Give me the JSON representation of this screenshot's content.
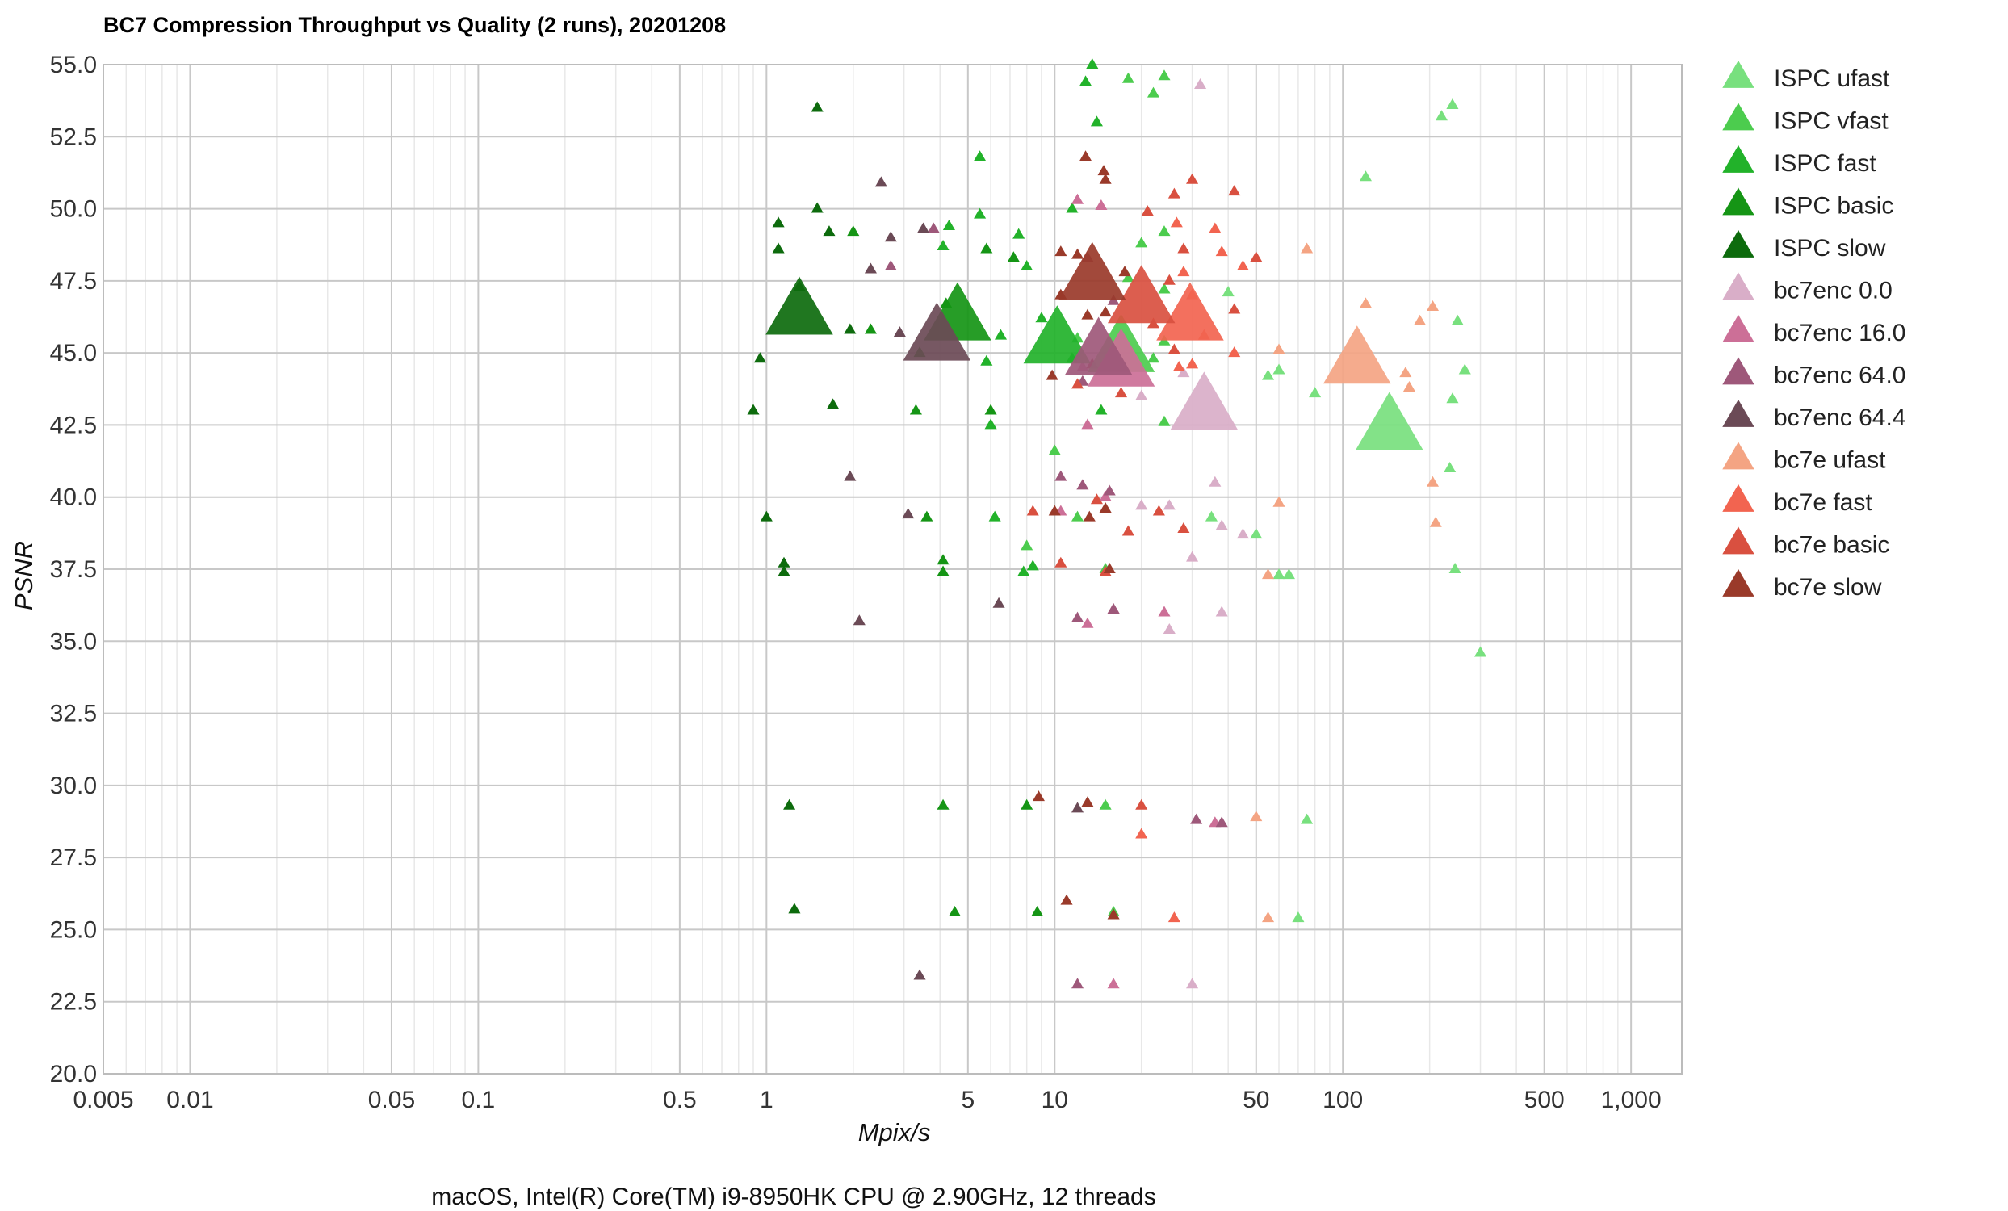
{
  "chart_data": {
    "type": "scatter",
    "title": "BC7 Compression Throughput vs Quality (2 runs), 20201208",
    "xlabel": "Mpix/s",
    "ylabel": "PSNR",
    "footer": "macOS, Intel(R) Core(TM) i9-8950HK CPU @ 2.90GHz, 12 threads",
    "x_scale": "log",
    "xlim": [
      0.005,
      1500
    ],
    "ylim": [
      20,
      55
    ],
    "x_ticks": [
      {
        "value": 0.005,
        "label": "0.005"
      },
      {
        "value": 0.01,
        "label": "0.01"
      },
      {
        "value": 0.05,
        "label": "0.05"
      },
      {
        "value": 0.1,
        "label": "0.1"
      },
      {
        "value": 0.5,
        "label": "0.5"
      },
      {
        "value": 1,
        "label": "1"
      },
      {
        "value": 5,
        "label": "5"
      },
      {
        "value": 10,
        "label": "10"
      },
      {
        "value": 50,
        "label": "50"
      },
      {
        "value": 100,
        "label": "100"
      },
      {
        "value": 500,
        "label": "500"
      },
      {
        "value": 1000,
        "label": "1,000"
      }
    ],
    "y_ticks": [
      {
        "value": 20,
        "label": "20.0"
      },
      {
        "value": 22.5,
        "label": "22.5"
      },
      {
        "value": 25,
        "label": "25.0"
      },
      {
        "value": 27.5,
        "label": "27.5"
      },
      {
        "value": 30,
        "label": "30.0"
      },
      {
        "value": 32.5,
        "label": "32.5"
      },
      {
        "value": 35,
        "label": "35.0"
      },
      {
        "value": 37.5,
        "label": "37.5"
      },
      {
        "value": 40,
        "label": "40.0"
      },
      {
        "value": 42.5,
        "label": "42.5"
      },
      {
        "value": 45,
        "label": "45.0"
      },
      {
        "value": 47.5,
        "label": "47.5"
      },
      {
        "value": 50,
        "label": "50.0"
      },
      {
        "value": 52.5,
        "label": "52.5"
      },
      {
        "value": 55,
        "label": "55.0"
      }
    ],
    "grid": true,
    "legend_position": "right",
    "marker": "triangle",
    "series": [
      {
        "name": "ISPC ufast",
        "color": "#78e07e",
        "mean": [
          145,
          42.4
        ],
        "points": [
          [
            240,
            53.6
          ],
          [
            220,
            53.2
          ],
          [
            120,
            51.1
          ],
          [
            250,
            46.1
          ],
          [
            265,
            44.4
          ],
          [
            240,
            43.4
          ],
          [
            235,
            41
          ],
          [
            245,
            37.5
          ],
          [
            300,
            34.6
          ],
          [
            60,
            44.4
          ],
          [
            55,
            44.2
          ],
          [
            80,
            43.6
          ],
          [
            40,
            47.1
          ],
          [
            35,
            39.3
          ],
          [
            50,
            38.7
          ],
          [
            60,
            37.3
          ],
          [
            65,
            37.3
          ],
          [
            75,
            28.8
          ],
          [
            70,
            25.4
          ]
        ]
      },
      {
        "name": "ISPC vfast",
        "color": "#4ccc4e",
        "mean": [
          17,
          45.1
        ],
        "points": [
          [
            18,
            54.5
          ],
          [
            22,
            54
          ],
          [
            24,
            54.6
          ],
          [
            24,
            49.2
          ],
          [
            20,
            48.8
          ],
          [
            18,
            47.6
          ],
          [
            24,
            47.2
          ],
          [
            24,
            45.4
          ],
          [
            22,
            44.8
          ],
          [
            24,
            42.6
          ],
          [
            10,
            41.6
          ],
          [
            12,
            39.3
          ],
          [
            15,
            37.5
          ],
          [
            15,
            29.3
          ],
          [
            16,
            25.6
          ],
          [
            12,
            45.5
          ],
          [
            8,
            38.3
          ]
        ]
      },
      {
        "name": "ISPC fast",
        "color": "#22b22a",
        "mean": [
          10.2,
          45.4
        ],
        "points": [
          [
            13.5,
            55
          ],
          [
            12.8,
            54.4
          ],
          [
            14,
            53
          ],
          [
            5.5,
            51.8
          ],
          [
            11.5,
            50
          ],
          [
            5.5,
            49.8
          ],
          [
            7.5,
            49.1
          ],
          [
            8,
            48
          ],
          [
            9,
            46.2
          ],
          [
            6.5,
            45.6
          ],
          [
            5.8,
            44.7
          ],
          [
            11.5,
            44.8
          ],
          [
            14.5,
            43
          ],
          [
            6.2,
            39.3
          ],
          [
            7.8,
            37.4
          ],
          [
            8.4,
            37.6
          ],
          [
            4.3,
            49.4
          ],
          [
            4.1,
            48.7
          ],
          [
            6,
            42.5
          ]
        ]
      },
      {
        "name": "ISPC basic",
        "color": "#159515",
        "mean": [
          4.6,
          46.2
        ],
        "points": [
          [
            2,
            49.2
          ],
          [
            2.3,
            45.8
          ],
          [
            3.4,
            45
          ],
          [
            3.3,
            43
          ],
          [
            4.2,
            46.7
          ],
          [
            6,
            43
          ],
          [
            3.6,
            39.3
          ],
          [
            4.1,
            37.8
          ],
          [
            4.1,
            37.4
          ],
          [
            8,
            29.3
          ],
          [
            4.1,
            29.3
          ],
          [
            4.5,
            25.6
          ],
          [
            8.7,
            25.6
          ],
          [
            5.8,
            48.6
          ],
          [
            7.2,
            48.3
          ]
        ]
      },
      {
        "name": "ISPC slow",
        "color": "#0d6b0d",
        "mean": [
          1.3,
          46.4
        ],
        "points": [
          [
            1.5,
            53.5
          ],
          [
            1.1,
            49.5
          ],
          [
            1.5,
            50
          ],
          [
            1.1,
            48.6
          ],
          [
            1.3,
            47.3
          ],
          [
            0.95,
            44.8
          ],
          [
            0.9,
            43
          ],
          [
            1.7,
            43.2
          ],
          [
            1.0,
            39.3
          ],
          [
            1.15,
            37.7
          ],
          [
            1.15,
            37.4
          ],
          [
            1.2,
            29.3
          ],
          [
            1.25,
            25.7
          ],
          [
            1.95,
            45.8
          ],
          [
            1.65,
            49.2
          ]
        ]
      },
      {
        "name": "bc7enc 0.0",
        "color": "#d9aec8",
        "mean": [
          33,
          43.1
        ],
        "points": [
          [
            32,
            54.3
          ],
          [
            28,
            44.3
          ],
          [
            20,
            39.7
          ],
          [
            25,
            39.7
          ],
          [
            30,
            37.9
          ],
          [
            38,
            39
          ],
          [
            45,
            38.7
          ],
          [
            38,
            36
          ],
          [
            25,
            35.4
          ],
          [
            30,
            23.1
          ],
          [
            20,
            43.5
          ],
          [
            36,
            40.5
          ]
        ]
      },
      {
        "name": "bc7enc 16.0",
        "color": "#cc6f97",
        "mean": [
          17,
          44.6
        ],
        "points": [
          [
            12,
            50.3
          ],
          [
            14.5,
            50.1
          ],
          [
            12.5,
            44.5
          ],
          [
            13,
            42.5
          ],
          [
            10.5,
            39.5
          ],
          [
            15,
            40
          ],
          [
            24,
            36
          ],
          [
            13,
            35.6
          ],
          [
            16,
            36.1
          ],
          [
            16,
            23.1
          ],
          [
            36,
            28.7
          ]
        ]
      },
      {
        "name": "bc7enc 64.0",
        "color": "#9e587a",
        "mean": [
          14.2,
          45
        ],
        "points": [
          [
            13,
            48.3
          ],
          [
            16,
            46.8
          ],
          [
            12.5,
            44
          ],
          [
            10.5,
            40.7
          ],
          [
            12.5,
            40.4
          ],
          [
            15.5,
            40.2
          ],
          [
            12,
            35.8
          ],
          [
            12,
            23.1
          ],
          [
            16,
            36.1
          ],
          [
            31,
            28.8
          ],
          [
            38,
            28.7
          ],
          [
            3.8,
            49.3
          ],
          [
            2.7,
            48
          ]
        ]
      },
      {
        "name": "bc7enc 64.4",
        "color": "#6b4a56",
        "mean": [
          3.9,
          45.5
        ],
        "points": [
          [
            2.5,
            50.9
          ],
          [
            2.7,
            49
          ],
          [
            3.5,
            49.3
          ],
          [
            2.3,
            47.9
          ],
          [
            2.9,
            45.7
          ],
          [
            1.95,
            40.7
          ],
          [
            3.1,
            39.4
          ],
          [
            2.1,
            35.7
          ],
          [
            6.4,
            36.3
          ],
          [
            3.4,
            23.4
          ],
          [
            12,
            29.2
          ]
        ]
      },
      {
        "name": "bc7e ufast",
        "color": "#f4a483",
        "mean": [
          112,
          44.7
        ],
        "points": [
          [
            75,
            48.6
          ],
          [
            120,
            46.7
          ],
          [
            185,
            46.1
          ],
          [
            205,
            46.6
          ],
          [
            165,
            44.3
          ],
          [
            170,
            43.8
          ],
          [
            205,
            40.5
          ],
          [
            210,
            39.1
          ],
          [
            60,
            45.1
          ],
          [
            60,
            39.8
          ],
          [
            55,
            37.3
          ],
          [
            50,
            28.9
          ],
          [
            55,
            25.4
          ]
        ]
      },
      {
        "name": "bc7e fast",
        "color": "#f26450",
        "mean": [
          29.5,
          46.2
        ],
        "points": [
          [
            26.5,
            49.5
          ],
          [
            28,
            47.8
          ],
          [
            36,
            49.3
          ],
          [
            30,
            47
          ],
          [
            33,
            45.6
          ],
          [
            42,
            45
          ],
          [
            27,
            44.5
          ],
          [
            38,
            48.5
          ],
          [
            45,
            48
          ],
          [
            30,
            44.6
          ],
          [
            20,
            28.3
          ],
          [
            26,
            25.4
          ]
        ]
      },
      {
        "name": "bc7e basic",
        "color": "#d95040",
        "mean": [
          20,
          46.8
        ],
        "points": [
          [
            30,
            51
          ],
          [
            26,
            50.5
          ],
          [
            42,
            50.6
          ],
          [
            21,
            49.9
          ],
          [
            28,
            48.6
          ],
          [
            25,
            47.5
          ],
          [
            22,
            46
          ],
          [
            42,
            46.5
          ],
          [
            50,
            48.3
          ],
          [
            26,
            45.1
          ],
          [
            17,
            43.6
          ],
          [
            12,
            43.9
          ],
          [
            28,
            38.9
          ],
          [
            18,
            38.8
          ],
          [
            20,
            29.3
          ],
          [
            15,
            37.4
          ],
          [
            10.5,
            37.7
          ],
          [
            14,
            39.9
          ],
          [
            8.4,
            39.5
          ],
          [
            23,
            39.5
          ]
        ]
      },
      {
        "name": "bc7e slow",
        "color": "#9a3a2a",
        "mean": [
          13.5,
          47.6
        ],
        "points": [
          [
            12.8,
            51.8
          ],
          [
            14.8,
            51.3
          ],
          [
            15,
            51
          ],
          [
            10.5,
            48.5
          ],
          [
            17.5,
            47.8
          ],
          [
            12,
            48.4
          ],
          [
            10.5,
            47
          ],
          [
            15,
            46.4
          ],
          [
            13,
            46.3
          ],
          [
            9.8,
            44.2
          ],
          [
            13.5,
            44.6
          ],
          [
            15,
            39.6
          ],
          [
            13.2,
            39.3
          ],
          [
            10,
            39.5
          ],
          [
            15.5,
            37.5
          ],
          [
            8.8,
            29.6
          ],
          [
            13,
            29.4
          ],
          [
            11,
            26
          ],
          [
            16,
            25.5
          ]
        ]
      }
    ]
  }
}
